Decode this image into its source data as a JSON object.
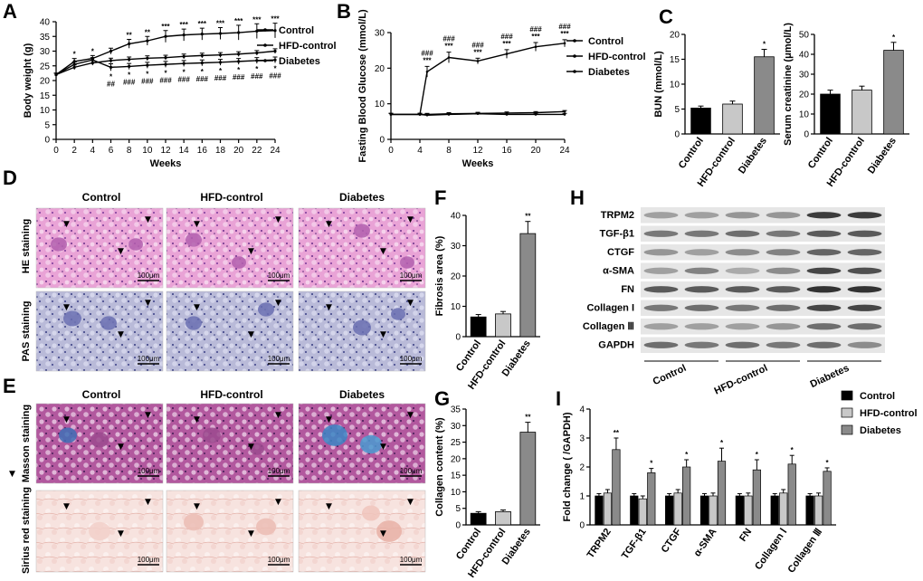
{
  "panels": [
    "A",
    "B",
    "C",
    "D",
    "E",
    "F",
    "G",
    "H",
    "I"
  ],
  "colors": {
    "black": "#000000",
    "lightgray": "#c8c8c8",
    "darkgray": "#8a8a8a"
  },
  "chart_data": [
    {
      "id": "A",
      "type": "line",
      "xlabel": "Weeks",
      "ylabel": "Body weight (g)",
      "xlim": [
        0,
        24
      ],
      "ylim": [
        0,
        40
      ],
      "xticks": [
        0,
        2,
        4,
        6,
        8,
        10,
        12,
        14,
        16,
        18,
        20,
        22,
        24
      ],
      "yticks": [
        0,
        5,
        10,
        15,
        20,
        25,
        30,
        35,
        40
      ],
      "legend": "top-right",
      "series": [
        {
          "name": "Control",
          "x": [
            0,
            2,
            4,
            6,
            8,
            10,
            12,
            14,
            16,
            18,
            20,
            22,
            24
          ],
          "y": [
            22,
            26.5,
            27.5,
            30,
            32.5,
            33.5,
            35,
            35.5,
            35.8,
            36,
            36.3,
            36.8,
            37
          ],
          "err": [
            0.5,
            1,
            1,
            1,
            1.5,
            1.5,
            2,
            2,
            2,
            2,
            2.5,
            2.5,
            2.5
          ]
        },
        {
          "name": "HFD-control",
          "x": [
            0,
            2,
            4,
            6,
            8,
            10,
            12,
            14,
            16,
            18,
            20,
            22,
            24
          ],
          "y": [
            22,
            24.5,
            26,
            26.8,
            27.2,
            27.6,
            27.8,
            28.2,
            28.5,
            28.7,
            29,
            29.4,
            30
          ],
          "err": [
            0.5,
            0.8,
            0.8,
            0.8,
            0.8,
            0.8,
            0.8,
            0.8,
            0.8,
            0.8,
            0.8,
            0.8,
            0.8
          ]
        },
        {
          "name": "Diabetes",
          "x": [
            0,
            2,
            4,
            6,
            8,
            10,
            12,
            14,
            16,
            18,
            20,
            22,
            24
          ],
          "y": [
            22,
            25.5,
            27,
            24.5,
            24.8,
            25.2,
            25.5,
            25.8,
            26,
            26.2,
            26.5,
            26.8,
            27
          ],
          "err": [
            0.5,
            0.8,
            0.8,
            1.2,
            1,
            1,
            1,
            1,
            1,
            1,
            1,
            1,
            1
          ]
        }
      ],
      "annotations_top": [
        {
          "x": 2,
          "text": "*"
        },
        {
          "x": 4,
          "text": "*"
        },
        {
          "x": 8,
          "text": "**"
        },
        {
          "x": 10,
          "text": "**"
        },
        {
          "x": 12,
          "text": "***"
        },
        {
          "x": 14,
          "text": "***"
        },
        {
          "x": 16,
          "text": "***"
        },
        {
          "x": 18,
          "text": "***"
        },
        {
          "x": 20,
          "text": "***"
        },
        {
          "x": 22,
          "text": "***"
        },
        {
          "x": 24,
          "text": "***"
        }
      ],
      "annotations_bottom": [
        {
          "x": 6,
          "l1": "*",
          "l2": "##"
        },
        {
          "x": 8,
          "l1": "*",
          "l2": "###"
        },
        {
          "x": 10,
          "l1": "*",
          "l2": "###"
        },
        {
          "x": 12,
          "l1": "*",
          "l2": "###"
        },
        {
          "x": 14,
          "l1": "*",
          "l2": "###"
        },
        {
          "x": 16,
          "l1": "*",
          "l2": "###"
        },
        {
          "x": 18,
          "l1": "*",
          "l2": "###"
        },
        {
          "x": 20,
          "l1": "*",
          "l2": "###"
        },
        {
          "x": 22,
          "l1": "*",
          "l2": "###"
        },
        {
          "x": 24,
          "l1": "*",
          "l2": "###"
        }
      ]
    },
    {
      "id": "B",
      "type": "line",
      "xlabel": "Weeks",
      "ylabel": "Fasting Blood Glucose (mmol/L)",
      "xlim": [
        0,
        24
      ],
      "ylim": [
        0,
        30
      ],
      "xticks": [
        0,
        4,
        8,
        12,
        16,
        20,
        24
      ],
      "yticks": [
        0,
        10,
        20,
        30
      ],
      "legend": "top-right",
      "series": [
        {
          "name": "Control",
          "x": [
            0,
            4,
            5,
            8,
            12,
            16,
            20,
            24
          ],
          "y": [
            7,
            7,
            7,
            7.2,
            7.3,
            7.4,
            7.5,
            7.8
          ],
          "err": [
            0.3,
            0.3,
            0.3,
            0.3,
            0.3,
            0.3,
            0.3,
            0.3
          ]
        },
        {
          "name": "HFD-control",
          "x": [
            0,
            4,
            5,
            8,
            12,
            16,
            20,
            24
          ],
          "y": [
            7,
            7,
            6.8,
            7,
            7.2,
            7,
            7,
            7
          ],
          "err": [
            0.3,
            0.3,
            0.3,
            0.3,
            0.3,
            0.3,
            0.3,
            0.3
          ]
        },
        {
          "name": "Diabetes",
          "x": [
            0,
            4,
            5,
            8,
            12,
            16,
            20,
            24
          ],
          "y": [
            7,
            7,
            19,
            23,
            22,
            24,
            26,
            27
          ],
          "err": [
            0.3,
            0.3,
            1.5,
            1.5,
            0.8,
            1.2,
            1.2,
            1
          ]
        }
      ],
      "annotations": [
        {
          "x": 5,
          "l1": "###",
          "l2": "***"
        },
        {
          "x": 8,
          "l1": "###",
          "l2": "***"
        },
        {
          "x": 12,
          "l1": "###",
          "l2": "***"
        },
        {
          "x": 16,
          "l1": "###",
          "l2": "***"
        },
        {
          "x": 20,
          "l1": "###",
          "l2": "***"
        },
        {
          "x": 24,
          "l1": "###",
          "l2": "***"
        }
      ]
    },
    {
      "id": "C1",
      "type": "bar",
      "ylabel": "BUN (mmol/L)",
      "categories": [
        "Control",
        "HFD-control",
        "Diabetes"
      ],
      "values": [
        5.2,
        6.0,
        15.5
      ],
      "err": [
        0.4,
        0.6,
        1.5
      ],
      "ylim": [
        0,
        20
      ],
      "yticks": [
        0,
        5,
        10,
        15,
        20
      ],
      "stars": [
        "",
        "",
        "*"
      ]
    },
    {
      "id": "C2",
      "type": "bar",
      "ylabel": "Serum creatinine (μmol/L)",
      "categories": [
        "Control",
        "HFD-control",
        "Diabetes"
      ],
      "values": [
        20,
        22,
        42
      ],
      "err": [
        2,
        2,
        4
      ],
      "ylim": [
        0,
        50
      ],
      "yticks": [
        0,
        10,
        20,
        30,
        40,
        50
      ],
      "stars": [
        "",
        "",
        "*"
      ]
    },
    {
      "id": "F",
      "type": "bar",
      "ylabel": "Fibrosis area (%)",
      "categories": [
        "Control",
        "HFD-control",
        "Diabetes"
      ],
      "values": [
        6.5,
        7.5,
        34
      ],
      "err": [
        0.8,
        0.8,
        4
      ],
      "ylim": [
        0,
        40
      ],
      "yticks": [
        0,
        10,
        20,
        30,
        40
      ],
      "stars": [
        "",
        "",
        "**"
      ]
    },
    {
      "id": "G",
      "type": "bar",
      "ylabel": "Collagen content (%)",
      "categories": [
        "Control",
        "HFD-control",
        "Diabetes"
      ],
      "values": [
        3.5,
        4,
        28
      ],
      "err": [
        0.5,
        0.5,
        3
      ],
      "ylim": [
        0,
        35
      ],
      "yticks": [
        0,
        5,
        10,
        15,
        20,
        25,
        30,
        35
      ],
      "stars": [
        "",
        "",
        "**"
      ]
    },
    {
      "id": "I",
      "type": "bar",
      "ylabel": "Fold change (  /GAPDH)",
      "categories": [
        "TRPM2",
        "TGF-β1",
        "CTGF",
        "α-SMA",
        "FN",
        "Collagen Ⅰ",
        "Collagen Ⅲ"
      ],
      "ylim": [
        0,
        4
      ],
      "yticks": [
        0,
        1,
        2,
        3,
        4
      ],
      "legend": "top-right",
      "series": [
        {
          "name": "Control",
          "values": [
            1,
            1,
            1,
            1,
            1,
            1,
            1
          ],
          "err": [
            0.08,
            0.08,
            0.08,
            0.08,
            0.08,
            0.08,
            0.08
          ]
        },
        {
          "name": "HFD-control",
          "values": [
            1.1,
            0.9,
            1.1,
            1,
            1,
            1.1,
            1
          ],
          "err": [
            0.12,
            0.1,
            0.12,
            0.1,
            0.1,
            0.12,
            0.1
          ]
        },
        {
          "name": "Diabetes",
          "values": [
            2.6,
            1.8,
            2,
            2.2,
            1.9,
            2.1,
            1.85
          ],
          "err": [
            0.4,
            0.15,
            0.25,
            0.45,
            0.35,
            0.3,
            0.12
          ]
        }
      ],
      "stars": [
        "**",
        "*",
        "*",
        "*",
        "*",
        "*",
        "*"
      ]
    }
  ],
  "histology": {
    "D": {
      "columns": [
        "Control",
        "HFD-control",
        "Diabetes"
      ],
      "rows": [
        "HE staining",
        "PAS staining"
      ],
      "scale": "100μm"
    },
    "E": {
      "columns": [
        "Control",
        "HFD-control",
        "Diabetes"
      ],
      "rows": [
        "Masson staining",
        "Sirius red staining"
      ],
      "scale": "100μm",
      "side_mark": "▼"
    }
  },
  "western_blot": {
    "id": "H",
    "bands": [
      "TRPM2",
      "TGF-β1",
      "CTGF",
      "α-SMA",
      "FN",
      "Collagen I",
      "Collagen Ⅲ",
      "GAPDH"
    ],
    "groups": [
      "Control",
      "HFD-control",
      "Diabetes"
    ],
    "intensity": [
      [
        0.35,
        0.35,
        0.4,
        0.4,
        0.85,
        0.85
      ],
      [
        0.55,
        0.55,
        0.6,
        0.55,
        0.7,
        0.7
      ],
      [
        0.4,
        0.35,
        0.45,
        0.5,
        0.65,
        0.65
      ],
      [
        0.35,
        0.5,
        0.3,
        0.45,
        0.8,
        0.75
      ],
      [
        0.7,
        0.7,
        0.7,
        0.7,
        0.9,
        0.9
      ],
      [
        0.55,
        0.6,
        0.55,
        0.6,
        0.8,
        0.8
      ],
      [
        0.35,
        0.35,
        0.35,
        0.4,
        0.6,
        0.6
      ],
      [
        0.6,
        0.55,
        0.6,
        0.55,
        0.6,
        0.45
      ]
    ]
  }
}
